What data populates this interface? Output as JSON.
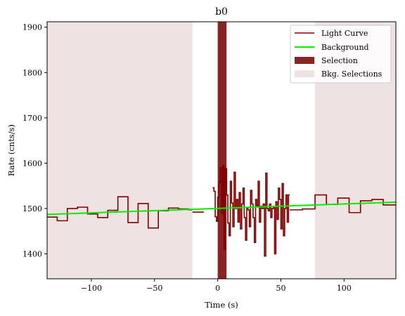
{
  "chart_data": {
    "type": "line",
    "title": "b0",
    "xlabel": "Time (s)",
    "ylabel": "Rate (cnts/s)",
    "xlim": [
      -135,
      141
    ],
    "ylim": [
      1345,
      1912
    ],
    "xticks": [
      -100,
      -50,
      0,
      50,
      100
    ],
    "xtick_labels": [
      "−100",
      "−50",
      "0",
      "50",
      "100"
    ],
    "yticks": [
      1400,
      1500,
      1600,
      1700,
      1800,
      1900
    ],
    "ytick_labels": [
      "1400",
      "1500",
      "1600",
      "1700",
      "1800",
      "1900"
    ],
    "legend_position": "top-right",
    "legend": [
      {
        "label": "Light Curve",
        "kind": "line",
        "color": "#800000"
      },
      {
        "label": "Background",
        "kind": "line",
        "color": "#00ee00"
      },
      {
        "label": "Selection",
        "kind": "patch",
        "color": "#8b2323"
      },
      {
        "label": "Bkg. Selections",
        "kind": "patch",
        "color": "#efe2e2"
      }
    ],
    "background_line": {
      "x": [
        -135,
        141
      ],
      "y": [
        1487,
        1514
      ]
    },
    "selection": {
      "x0": 0.0,
      "x1": 7.0
    },
    "bkg_selections": [
      {
        "x0": -135,
        "x1": -20
      },
      {
        "x0": 77,
        "x1": 141
      }
    ],
    "light_curve_segments": [
      {
        "edges": [
          -135,
          -127,
          -119,
          -111,
          -103,
          -95,
          -87,
          -79,
          -71,
          -63,
          -55,
          -47,
          -39,
          -31,
          -23,
          -20
        ],
        "values": [
          1481,
          1473,
          1500,
          1503,
          1488,
          1480,
          1496,
          1526,
          1469,
          1511,
          1457,
          1495,
          1501,
          1499,
          1497
        ]
      },
      {
        "edges": [
          -20,
          -11
        ],
        "values": [
          1492
        ]
      },
      {
        "edges": [
          -4,
          -3,
          -2,
          -1,
          0,
          1,
          2,
          3,
          4,
          5,
          6,
          7,
          8,
          9,
          10,
          11,
          12,
          13,
          14,
          15,
          16,
          17,
          18,
          19,
          20,
          21,
          22,
          23,
          24,
          25,
          26,
          27,
          28,
          29,
          30,
          31,
          32,
          33,
          34,
          35,
          36,
          37,
          38,
          39,
          40,
          41,
          42,
          43,
          44,
          45,
          46,
          47,
          48,
          49,
          50,
          51,
          52,
          53,
          54,
          55,
          56,
          57
        ],
        "values": [
          1546,
          1538,
          1482,
          1472,
          1525,
          1558,
          1590,
          1490,
          1595,
          1410,
          1588,
          1530,
          1468,
          1440,
          1560,
          1512,
          1460,
          1580,
          1500,
          1520,
          1470,
          1535,
          1455,
          1510,
          1545,
          1480,
          1430,
          1500,
          1497,
          1460,
          1540,
          1510,
          1480,
          1425,
          1520,
          1505,
          1560,
          1470,
          1505,
          1500,
          1510,
          1395,
          1578,
          1500,
          1495,
          1510,
          1480,
          1500,
          1505,
          1400,
          1515,
          1476,
          1545,
          1520,
          1455,
          1555,
          1440,
          1500,
          1530,
          1470,
          1530
        ]
      },
      {
        "edges": [
          57,
          67,
          77,
          86,
          95,
          104,
          113,
          122,
          131,
          141
        ],
        "values": [
          1497,
          1499,
          1530,
          1509,
          1523,
          1491,
          1517,
          1520,
          1508
        ]
      }
    ]
  }
}
